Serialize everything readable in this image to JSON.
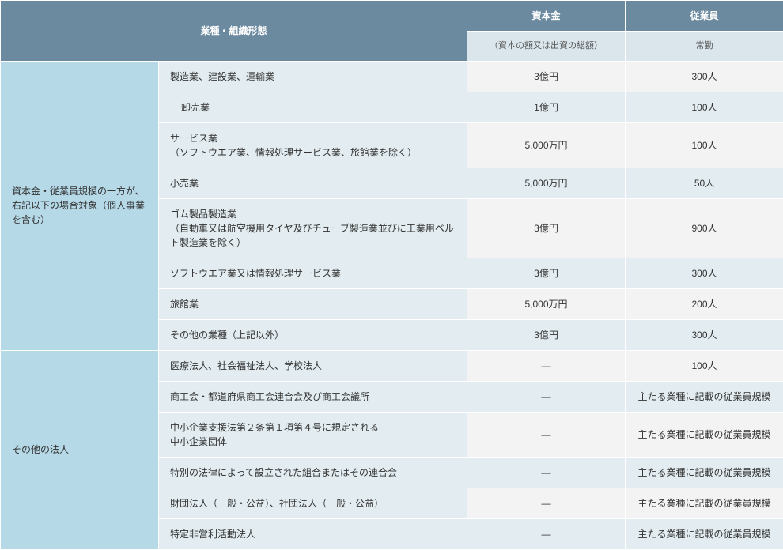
{
  "header": {
    "col1": "業種・組織形態",
    "col2": "資本金",
    "col2sub": "（資本の額又は出資の総額）",
    "col3": "従業員",
    "col3sub": "常勤"
  },
  "group1": {
    "label": "資本金・従業員規模の一方が、右記以下の場合対象（個人事業を含む）",
    "rows": [
      {
        "industry": "製造業、建設業、運輸業",
        "capital": "3億円",
        "employees": "300人"
      },
      {
        "industry": "卸売業",
        "capital": "1億円",
        "employees": "100人",
        "indent": true
      },
      {
        "industry": "サービス業\n（ソフトウエア業、情報処理サービス業、旅館業を除く）",
        "capital": "5,000万円",
        "employees": "100人"
      },
      {
        "industry": "小売業",
        "capital": "5,000万円",
        "employees": "50人"
      },
      {
        "industry": "ゴム製品製造業\n（自動車又は航空機用タイヤ及びチューブ製造業並びに工業用ベルト製造業を除く）",
        "capital": "3億円",
        "employees": "900人"
      },
      {
        "industry": "ソフトウエア業又は情報処理サービス業",
        "capital": "3億円",
        "employees": "300人"
      },
      {
        "industry": "旅館業",
        "capital": "5,000万円",
        "employees": "200人"
      },
      {
        "industry": "その他の業種（上記以外）",
        "capital": "3億円",
        "employees": "300人"
      }
    ]
  },
  "group2": {
    "label": "その他の法人",
    "rows": [
      {
        "industry": "医療法人、社会福祉法人、学校法人",
        "capital": "—",
        "employees": "100人"
      },
      {
        "industry": "商工会・都道府県商工会連合会及び商工会議所",
        "capital": "—",
        "employees": "主たる業種に記載の従業員規模"
      },
      {
        "industry": "中小企業支援法第２条第１項第４号に規定される\n中小企業団体",
        "capital": "—",
        "employees": "主たる業種に記載の従業員規模"
      },
      {
        "industry": "特別の法律によって設立された組合またはその連合会",
        "capital": "—",
        "employees": "主たる業種に記載の従業員規模"
      },
      {
        "industry": "財団法人（一般・公益）、社団法人（一般・公益）",
        "capital": "—",
        "employees": "主たる業種に記載の従業員規模"
      },
      {
        "industry": "特定非営利活動法人",
        "capital": "—",
        "employees": "主たる業種に記載の従業員規模"
      }
    ]
  },
  "colors": {
    "header_bg": "#6b8aa0",
    "header_fg": "#ffffff",
    "subheader_bg": "#dae6ec",
    "group_bg": "#b6d9e8",
    "industry_bg": "#e3edf1",
    "value_bg": "#f3f3f3",
    "border": "#ffffff"
  }
}
